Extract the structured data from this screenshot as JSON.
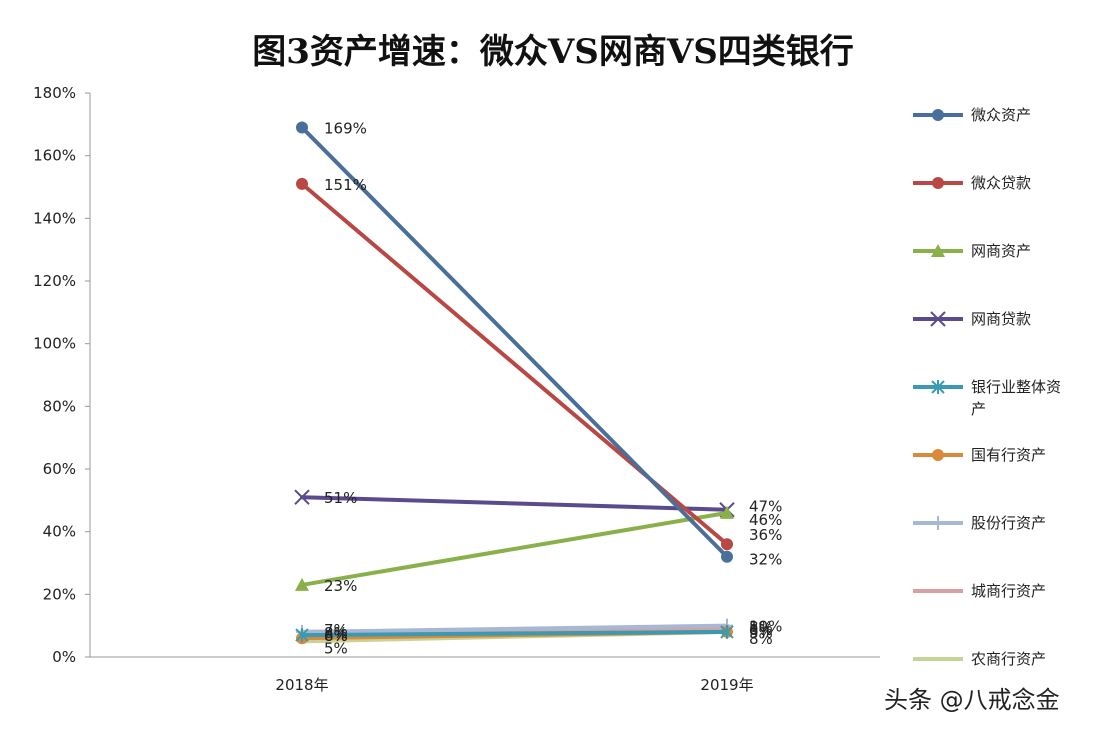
{
  "chart_data": {
    "type": "line",
    "title": "图3资产增速：微众VS网商VS四类银行",
    "categories": [
      "2018年",
      "2019年"
    ],
    "y_ticks": [
      "0%",
      "20%",
      "40%",
      "60%",
      "80%",
      "100%",
      "120%",
      "140%",
      "160%",
      "180%"
    ],
    "ylim": [
      0,
      180
    ],
    "grid": false,
    "legend_position": "right",
    "series": [
      {
        "name": "微众资产",
        "values": [
          169,
          32
        ],
        "labels": [
          "169%",
          "32%"
        ],
        "color": "#4a6f9a",
        "marker": "circle"
      },
      {
        "name": "微众贷款",
        "values": [
          151,
          36
        ],
        "labels": [
          "151%",
          "36%"
        ],
        "color": "#b94845",
        "marker": "circle"
      },
      {
        "name": "网商资产",
        "values": [
          23,
          46
        ],
        "labels": [
          "23%",
          "46%"
        ],
        "color": "#8ab04a",
        "marker": "triangle"
      },
      {
        "name": "网商贷款",
        "values": [
          51,
          47
        ],
        "labels": [
          "51%",
          "47%"
        ],
        "color": "#5a4a8e",
        "marker": "x"
      },
      {
        "name": "银行业整体资产",
        "values": [
          7,
          8
        ],
        "labels": [
          "7%",
          "8%"
        ],
        "color": "#3a9ab2",
        "marker": "star"
      },
      {
        "name": "国有行资产",
        "values": [
          6,
          8
        ],
        "labels": [
          "6%",
          "8%"
        ],
        "color": "#d9893a",
        "marker": "circle"
      },
      {
        "name": "股份行资产",
        "values": [
          8,
          10
        ],
        "labels": [
          "8%",
          "10%"
        ],
        "color": "#a8b8d4",
        "marker": "plus"
      },
      {
        "name": "城商行资产",
        "values": [
          8,
          9
        ],
        "labels": [
          "8%",
          "9%"
        ],
        "color": "#d8a0a0",
        "marker": "none"
      },
      {
        "name": "农商行资产",
        "values": [
          5,
          8
        ],
        "labels": [
          "5%",
          "8%"
        ],
        "color": "#c6d49a",
        "marker": "none"
      }
    ]
  },
  "watermark": "头条 @八戒念金"
}
